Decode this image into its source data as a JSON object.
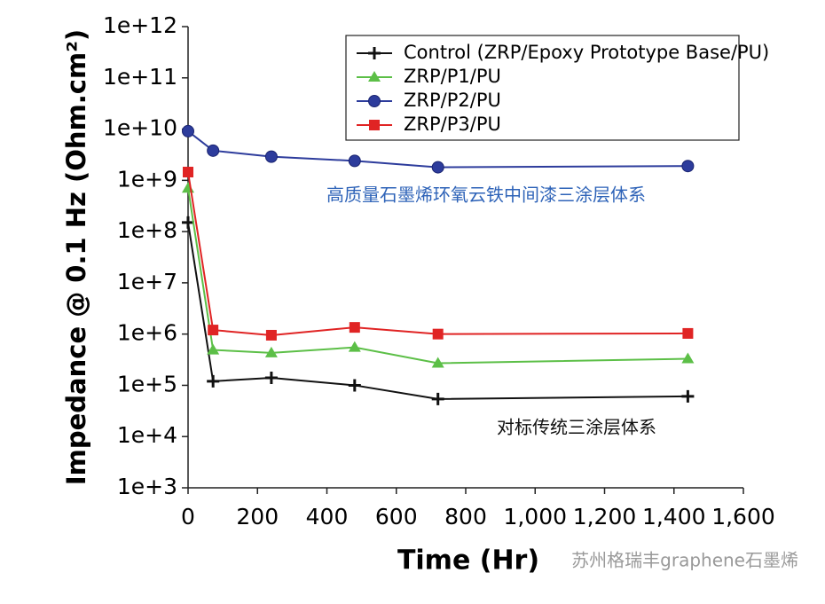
{
  "chart_data": {
    "type": "line",
    "xlabel": "Time (Hr)",
    "ylabel": "Impedance @ 0.1 Hz (Ohm.cm²)",
    "x": [
      0,
      72,
      240,
      480,
      720,
      1440
    ],
    "series": [
      {
        "name": "Control (ZRP/Epoxy Prototype Base/PU)",
        "color": "#111111",
        "marker": "plus",
        "values": [
          150000000,
          120000,
          140000,
          100000,
          54000,
          61000
        ]
      },
      {
        "name": "ZRP/P1/PU",
        "color": "#5cbf47",
        "marker": "triangle",
        "values": [
          700000000,
          490000,
          430000,
          550000,
          270000,
          330000
        ]
      },
      {
        "name": "ZRP/P2/PU",
        "color": "#2d3c9c",
        "marker": "circle",
        "values": [
          9100000000,
          3800000000,
          2900000000,
          2400000000,
          1800000000,
          1900000000
        ]
      },
      {
        "name": "ZRP/P3/PU",
        "color": "#e02424",
        "marker": "square",
        "values": [
          1450000000,
          1200000,
          950000,
          1350000,
          1000000,
          1030000
        ]
      }
    ],
    "xlim": [
      0,
      1600
    ],
    "xticks": [
      0,
      200,
      400,
      600,
      800,
      {
        "value": 1000,
        "label": "1,000"
      },
      {
        "value": 1200,
        "label": "1,200"
      },
      {
        "value": 1400,
        "label": "1,400"
      },
      {
        "value": 1600,
        "label": "1,600"
      }
    ],
    "ylim": [
      1000,
      1000000000000
    ],
    "yticks": [
      {
        "value": 1000,
        "label": "1e+3"
      },
      {
        "value": 10000,
        "label": "1e+4"
      },
      {
        "value": 100000,
        "label": "1e+5"
      },
      {
        "value": 1000000,
        "label": "1e+6"
      },
      {
        "value": 10000000,
        "label": "1e+7"
      },
      {
        "value": 100000000,
        "label": "1e+8"
      },
      {
        "value": 1000000000,
        "label": "1e+9"
      },
      {
        "value": 10000000000,
        "label": "1e+10"
      },
      {
        "value": 100000000000,
        "label": "1e+11"
      },
      {
        "value": 1000000000000,
        "label": "1e+12"
      }
    ],
    "log_y": true,
    "grid": false,
    "legend": "upper right",
    "annotations": [
      "高质量石墨烯环氧云铁中间漆三涂层体系",
      "对标传统三涂层体系"
    ],
    "watermark": "苏州格瑞丰graphene石墨烯"
  }
}
